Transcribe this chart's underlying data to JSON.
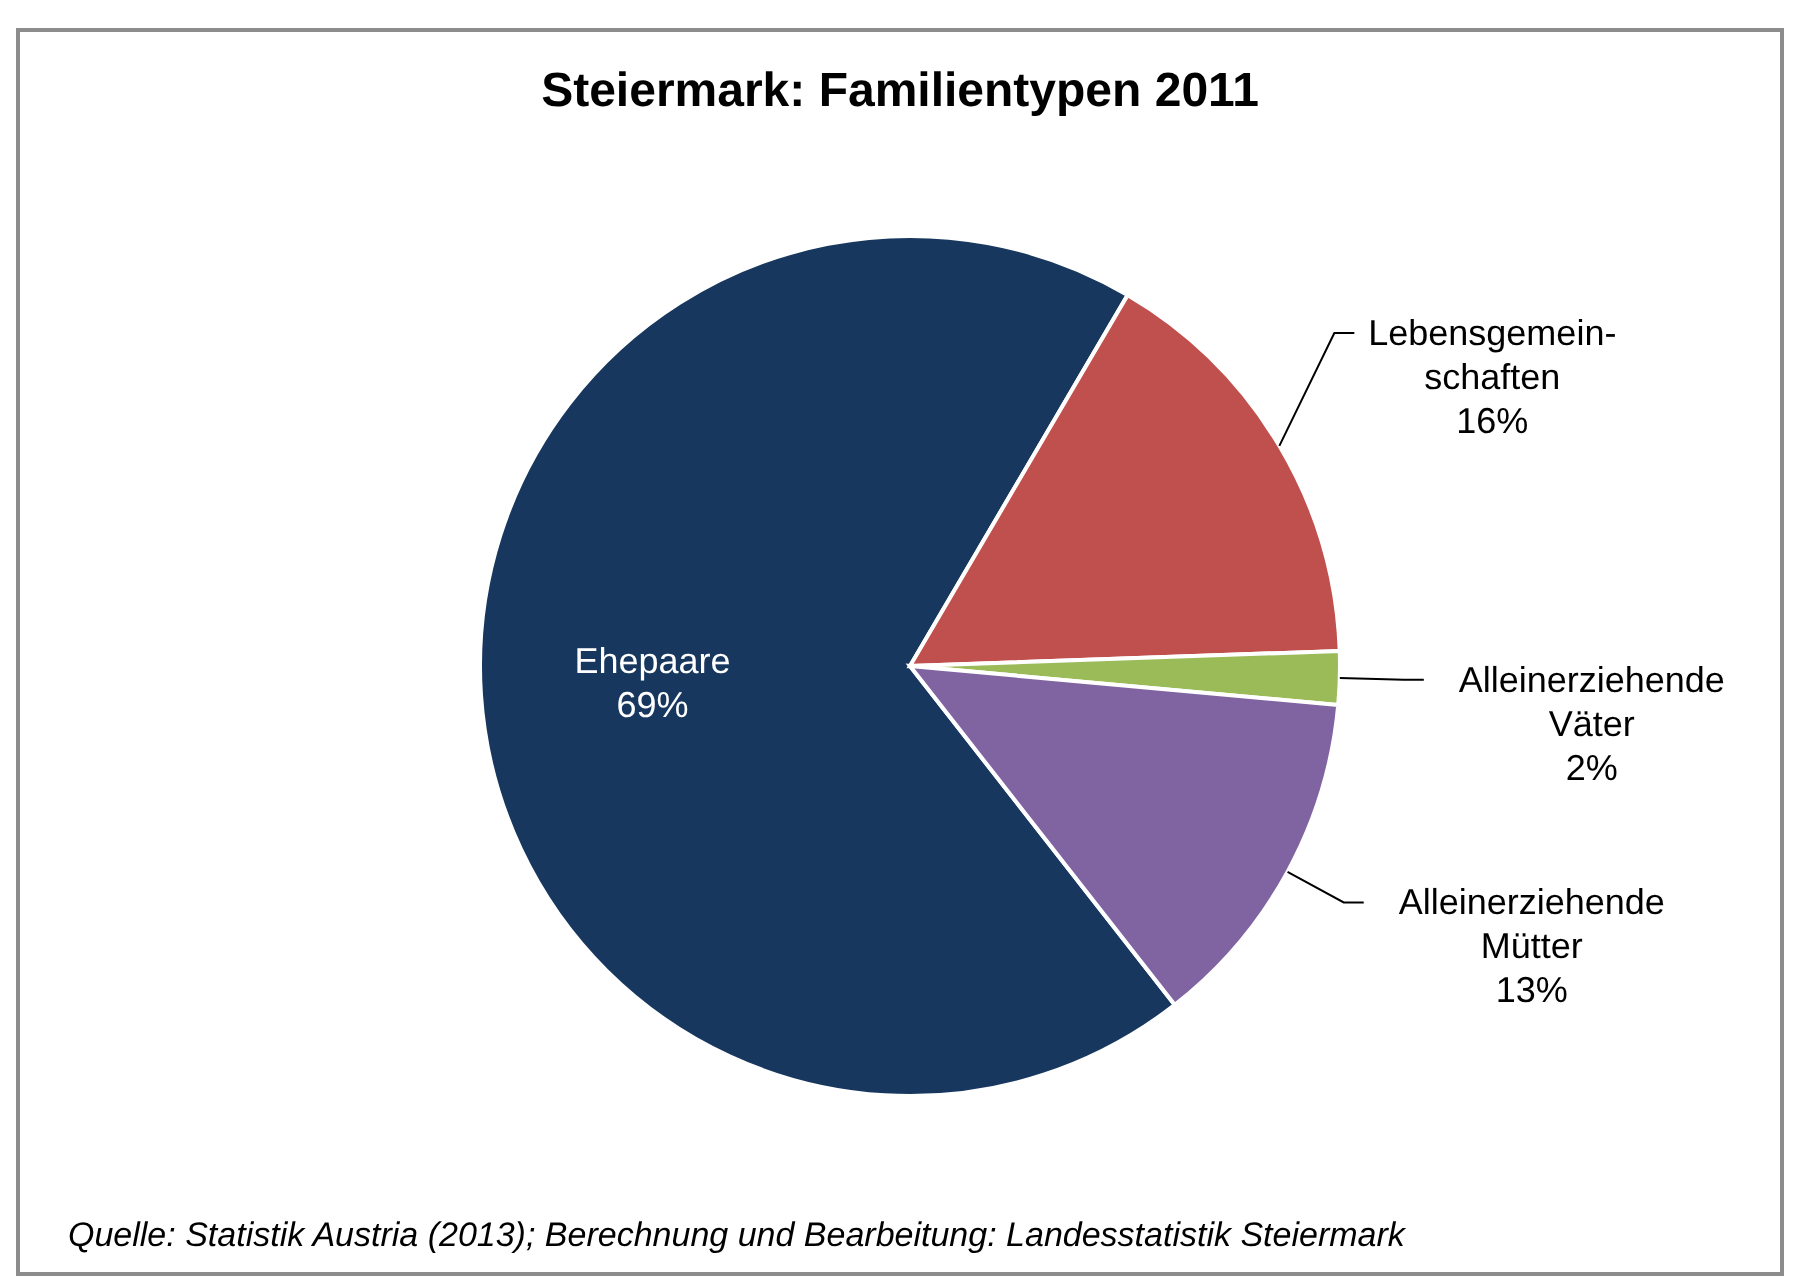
{
  "chart_data": {
    "type": "pie",
    "title": "Steiermark: Familientypen 2011",
    "categories": [
      "Ehepaare",
      "Lebensgemein- schaften",
      "Alleinerziehende Väter",
      "Alleinerziehende Mütter"
    ],
    "values": [
      69,
      16,
      2,
      13
    ],
    "value_labels": [
      "69%",
      "16%",
      "2%",
      "13%"
    ],
    "colors": [
      "#17375e",
      "#c0504d",
      "#9bbb59",
      "#8064a2"
    ],
    "annotations": [
      "Quelle: Statistik Austria (2013); Berechnung und Bearbeitung: Landesstatistik Steiermark"
    ]
  }
}
